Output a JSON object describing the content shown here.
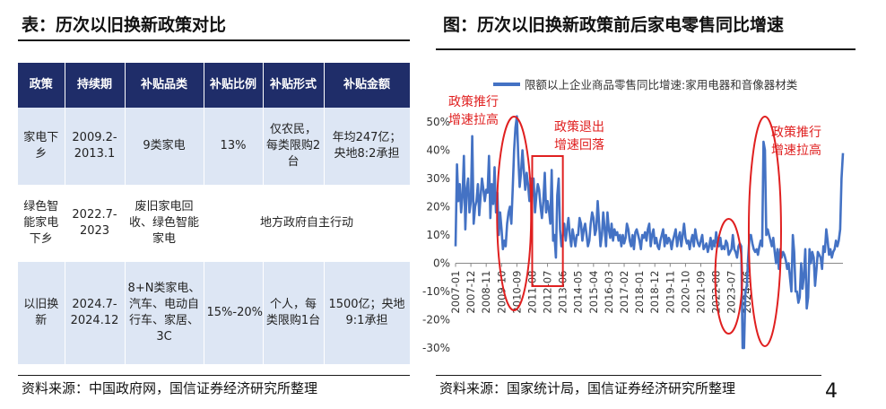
{
  "left_panel": {
    "title": "表：历次以旧换新政策对比",
    "headers": [
      "政策",
      "持续期",
      "补贴品类",
      "补贴比例",
      "补贴形式",
      "补贴金额"
    ],
    "rows": [
      {
        "policy": "家电下乡",
        "period": "2009.2-2013.1",
        "category": "9类家电",
        "ratio": "13%",
        "form": "仅农民，每类限购2台",
        "amount": "年均247亿；央地8:2承担"
      },
      {
        "policy": "绿色智能家电下乡",
        "period": "2022.7-2023",
        "category": "废旧家电回收、绿色智能家电",
        "merged": "地方政府自主行动"
      },
      {
        "policy": "以旧换新",
        "period": "2024.7-2024.12",
        "category": "8+N类家电、汽车、电动自行车、家居、3C",
        "ratio": "15%-20%",
        "form": "个人，每类限购1台",
        "amount": "1500亿；央地9:1承担"
      }
    ],
    "source": "资料来源：中国政府网，国信证券经济研究所整理"
  },
  "right_panel": {
    "title": "图：历次以旧换新政策前后家电零售同比增速",
    "source": "资料来源：国家统计局，国信证券经济研究所整理"
  },
  "page_number": "4",
  "colors": {
    "line": "#4472c4",
    "header_bg": "#1f2d69",
    "row_shade": "#dde6f4",
    "annotation": "#e02020"
  },
  "chart_data": {
    "type": "line",
    "title": "",
    "legend": "限额以上企业商品零售同比增速:家用电器和音像器材类",
    "legend_position": "top",
    "xlabel": "",
    "ylabel": "",
    "ylim": [
      -0.3,
      0.5
    ],
    "yticks": [
      "50%",
      "40%",
      "30%",
      "20%",
      "10%",
      "0%",
      "-10%",
      "-20%",
      "-30%"
    ],
    "xtick_labels": [
      "2007-01",
      "2007-12",
      "2008-11",
      "2009-10",
      "2010-09",
      "2011-08",
      "2012-07",
      "2013-06",
      "2014-05",
      "2015-04",
      "2016-03",
      "2017-02",
      "2018-01",
      "2018-12",
      "2019-11",
      "2020-10",
      "2021-09",
      "2022-08",
      "2023-07",
      "2024-06"
    ],
    "x_start": "2007-01",
    "series": [
      {
        "name": "限额以上企业商品零售同比增速:家用电器和音像器材类",
        "values": [
          0.06,
          0.35,
          0.22,
          0.28,
          0.18,
          0.24,
          0.38,
          0.12,
          0.26,
          0.3,
          0.18,
          0.22,
          0.45,
          0.14,
          0.2,
          0.22,
          0.28,
          0.17,
          0.24,
          0.3,
          0.26,
          0.22,
          0.26,
          0.25,
          0.38,
          0.16,
          0.28,
          0.21,
          0.34,
          0.18,
          0.25,
          0.1,
          0.18,
          0.12,
          0.05,
          0.08,
          0.06,
          0.14,
          0.18,
          0.2,
          0.14,
          0.26,
          0.4,
          0.48,
          0.52,
          0.38,
          0.27,
          0.32,
          0.4,
          0.33,
          0.26,
          0.32,
          0.28,
          0.22,
          0.3,
          0.24,
          0.3,
          0.18,
          0.24,
          0.28,
          0.26,
          0.2,
          0.16,
          0.22,
          0.32,
          0.18,
          0.22,
          0.19,
          0.14,
          0.33,
          0.08,
          0.1,
          0.02,
          0.24,
          0.3,
          0.12,
          0.06,
          0.1,
          0.14,
          0.08,
          0.12,
          0.16,
          0.1,
          0.06,
          0.12,
          0.09,
          0.06,
          0.1,
          0.1,
          0.16,
          0.14,
          0.08,
          0.12,
          0.14,
          0.1,
          0.06,
          0.08,
          0.14,
          0.18,
          0.16,
          0.1,
          0.12,
          0.22,
          0.14,
          0.06,
          0.1,
          0.18,
          0.12,
          0.06,
          0.18,
          0.12,
          0.09,
          0.14,
          0.08,
          0.12,
          0.1,
          0.11,
          0.08,
          0.1,
          0.06,
          0.1,
          0.07,
          0.09,
          0.14,
          0.12,
          0.08,
          0.06,
          0.1,
          0.05,
          0.11,
          0.12,
          0.1,
          0.08,
          0.05,
          0.1,
          0.09,
          0.11,
          0.08,
          0.12,
          0.14,
          0.06,
          0.1,
          0.12,
          0.07,
          0.09,
          0.06,
          0.05,
          0.08,
          0.1,
          0.12,
          0.06,
          0.1,
          0.07,
          0.09,
          0.08,
          0.05,
          0.08,
          0.1,
          0.12,
          0.06,
          0.09,
          0.11,
          0.06,
          0.1,
          0.14,
          0.09,
          0.07,
          0.08,
          0.05,
          0.08,
          0.1,
          0.06,
          0.12,
          0.09,
          0.07,
          0.06,
          0.08,
          0.1,
          0.05,
          0.06,
          0.07,
          0.04,
          0.06,
          0.09,
          0.05,
          0.08,
          0.06,
          0.11,
          0.07,
          0.06,
          0.09,
          0.05,
          0.06,
          0.05,
          0.08,
          0.07,
          0.03,
          0.04,
          0.05,
          0.1,
          0.05,
          0.04,
          0.02,
          0.06,
          0.07,
          0.06,
          -0.3,
          -0.3,
          -0.1,
          -0.08,
          0.02,
          0.1,
          0.1,
          0.07,
          0.05,
          0.04,
          0.05,
          0.03,
          0.06,
          0.08,
          0.06,
          0.43,
          0.4,
          0.1,
          0.12,
          0.1,
          0.08,
          0.06,
          0.09,
          0.04,
          0.0,
          0.05,
          -0.02,
          0.05,
          0.02,
          0.04,
          0.03,
          0.01,
          -0.02,
          0.0,
          -0.05,
          -0.1,
          0.1,
          0.04,
          -0.1,
          -0.1,
          -0.14,
          -0.12,
          0.0,
          -0.09,
          -0.04,
          0.05,
          -0.16,
          -0.12,
          0.05,
          0.0,
          0.04,
          0.02,
          -0.08,
          -0.02,
          0.04,
          0.03,
          0.02,
          -0.02,
          0.06,
          0.04,
          0.12,
          0.08,
          0.03,
          0.05,
          0.02,
          0.04,
          0.05,
          0.08,
          0.06,
          0.08,
          0.12,
          0.3,
          0.39
        ]
      }
    ],
    "annotations": [
      {
        "text": "政策推行增速拉高",
        "period": "2009-2010"
      },
      {
        "text": "政策退出增速回落",
        "period": "2011-2013"
      },
      {
        "text": "政策推行增速拉高",
        "period": "2024"
      }
    ]
  }
}
